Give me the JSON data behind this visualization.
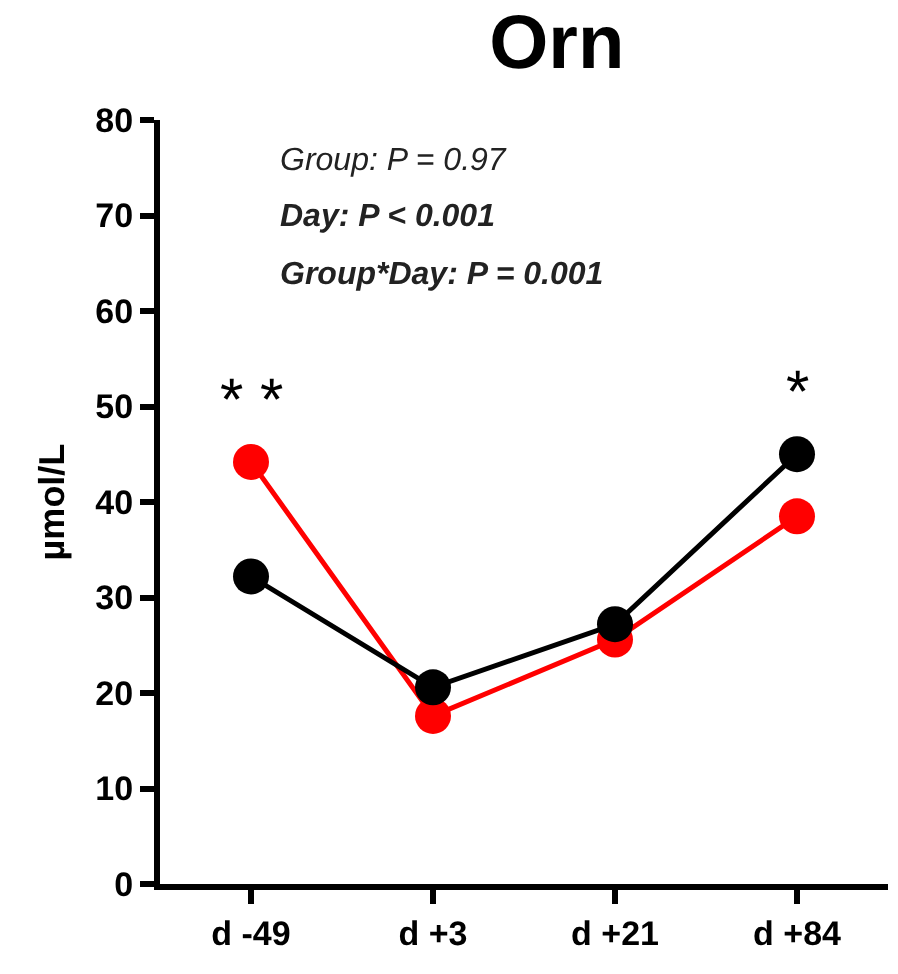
{
  "chart_data": {
    "type": "line",
    "title": "Orn",
    "ylabel": "µmol/L",
    "categories": [
      "d -49",
      "d +3",
      "d +21",
      "d +84"
    ],
    "series": [
      {
        "color": "#ff0000",
        "values": [
          44.2,
          17.6,
          25.6,
          38.5
        ]
      },
      {
        "color": "#000000",
        "values": [
          32.2,
          20.6,
          27.2,
          45
        ]
      }
    ],
    "ylim": [
      0,
      80
    ],
    "yticks": [
      0,
      10,
      20,
      30,
      40,
      50,
      60,
      70,
      80
    ],
    "grid": false,
    "marker": "circle",
    "line_style": "solid",
    "annotations": [
      "Group: P = 0.97",
      "Day: P < 0.001",
      "Group*Day: P = 0.001",
      "* *",
      "*"
    ]
  }
}
